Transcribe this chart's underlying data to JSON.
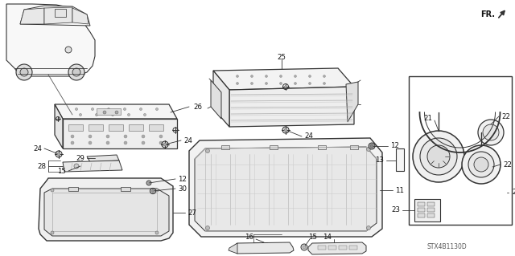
{
  "bg_color": "#ffffff",
  "diagram_code": "STX4B1130D",
  "fr_label": "FR.",
  "lc": "#333333",
  "tc": "#111111"
}
